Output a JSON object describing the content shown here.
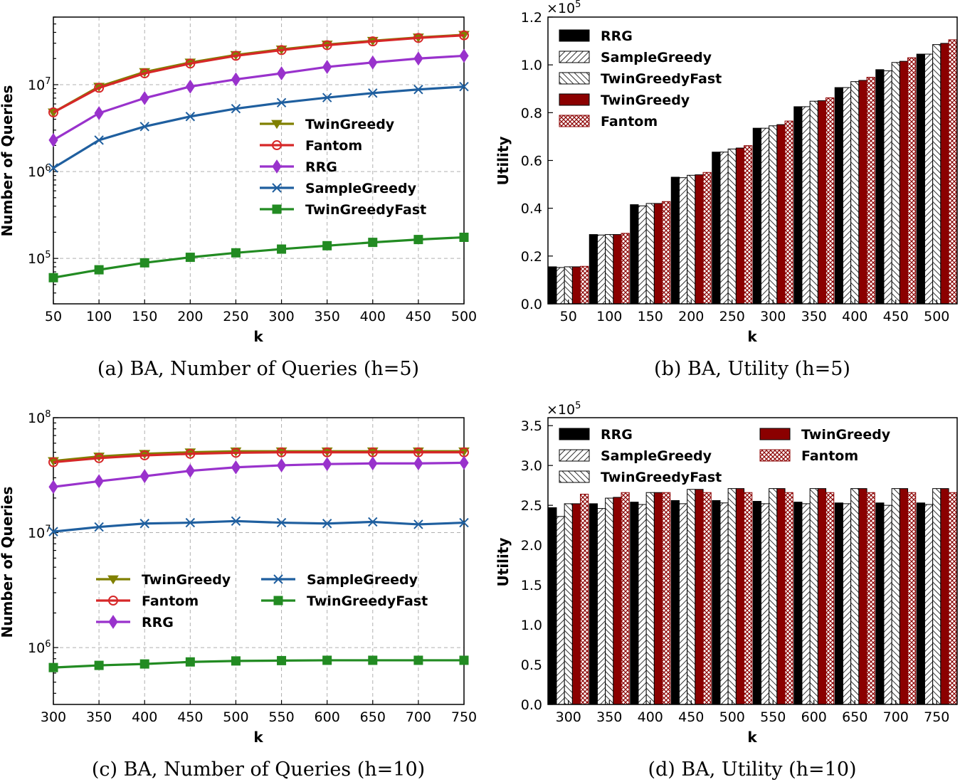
{
  "chart_data": [
    {
      "id": "a",
      "type": "line",
      "caption": "(a) BA, Number of Queries (h=5)",
      "xlabel": "k",
      "ylabel": "Number of Queries",
      "yscale": "log",
      "x": [
        50,
        100,
        150,
        200,
        250,
        300,
        350,
        400,
        450,
        500
      ],
      "xlim": [
        50,
        500
      ],
      "ylim": [
        30000,
        60000000
      ],
      "y_tick_labels": [
        "10",
        "10",
        "10"
      ],
      "y_tick_exponents": [
        "5",
        "6",
        "7"
      ],
      "legend_position": "center-right",
      "legend_columns": 1,
      "series": [
        {
          "name": "TwinGreedy",
          "color": "#808000",
          "marker": "triangle-down",
          "values": [
            4800000,
            9500000,
            14000000,
            18000000,
            22000000,
            25500000,
            29000000,
            32000000,
            35000000,
            37500000
          ]
        },
        {
          "name": "Fantom",
          "color": "#d62728",
          "marker": "circle-open",
          "values": [
            4800000,
            9200000,
            13500000,
            17500000,
            21500000,
            25000000,
            28500000,
            31500000,
            34500000,
            37000000
          ]
        },
        {
          "name": "RRG",
          "color": "#9932CC",
          "marker": "diamond",
          "values": [
            2300000,
            4700000,
            7000000,
            9500000,
            11500000,
            13500000,
            16000000,
            18000000,
            20000000,
            21500000
          ]
        },
        {
          "name": "SampleGreedy",
          "color": "#1f5f9f",
          "marker": "x",
          "values": [
            1100000,
            2300000,
            3300000,
            4300000,
            5300000,
            6200000,
            7100000,
            8000000,
            8800000,
            9500000
          ]
        },
        {
          "name": "TwinGreedyFast",
          "color": "#228B22",
          "marker": "square",
          "values": [
            60000,
            74000,
            89000,
            103000,
            116000,
            128000,
            140000,
            153000,
            165000,
            175000
          ]
        }
      ]
    },
    {
      "id": "b",
      "type": "bar",
      "caption": "(b) BA, Utility (h=5)",
      "xlabel": "k",
      "ylabel": "Utility",
      "multiplier_base": "×10",
      "multiplier_exp": "5",
      "categories": [
        "50",
        "100",
        "150",
        "200",
        "250",
        "300",
        "350",
        "400",
        "450",
        "500"
      ],
      "ylim": [
        0,
        1.2
      ],
      "yticks": [
        0,
        0.2,
        0.4,
        0.6,
        0.8,
        1.0,
        1.2
      ],
      "ytick_labels": [
        "0.0",
        "0.2",
        "0.4",
        "0.6",
        "0.8",
        "1.0",
        "1.2"
      ],
      "legend_position": "top-left",
      "legend_columns": 1,
      "series": [
        {
          "name": "RRG",
          "fill": "#000000",
          "pattern": "solid",
          "values": [
            0.155,
            0.29,
            0.415,
            0.53,
            0.635,
            0.735,
            0.825,
            0.905,
            0.98,
            1.045
          ]
        },
        {
          "name": "SampleGreedy",
          "fill": "#ffffff",
          "pattern": "hatch-fwd",
          "values": [
            0.152,
            0.288,
            0.41,
            0.528,
            0.635,
            0.735,
            0.825,
            0.905,
            0.975,
            1.045
          ]
        },
        {
          "name": "TwinGreedyFast",
          "fill": "#ffffff",
          "pattern": "hatch-back",
          "values": [
            0.155,
            0.29,
            0.42,
            0.538,
            0.648,
            0.745,
            0.848,
            0.93,
            1.01,
            1.085
          ]
        },
        {
          "name": "TwinGreedy",
          "fill": "#8b0000",
          "pattern": "solid",
          "values": [
            0.155,
            0.29,
            0.42,
            0.54,
            0.652,
            0.75,
            0.85,
            0.935,
            1.015,
            1.09
          ]
        },
        {
          "name": "Fantom",
          "fill": "#ffffff",
          "pattern": "crosshatch",
          "values": [
            0.157,
            0.295,
            0.428,
            0.55,
            0.662,
            0.765,
            0.862,
            0.948,
            1.03,
            1.105
          ]
        }
      ]
    },
    {
      "id": "c",
      "type": "line",
      "caption": "(c) BA, Number of Queries (h=10)",
      "xlabel": "k",
      "ylabel": "Number of Queries",
      "yscale": "log",
      "x": [
        300,
        350,
        400,
        450,
        500,
        550,
        600,
        650,
        700,
        750
      ],
      "xlim": [
        300,
        750
      ],
      "ylim": [
        320000,
        100000000
      ],
      "y_tick_labels": [
        "10",
        "10",
        "10"
      ],
      "y_tick_exponents": [
        "6",
        "7",
        "8"
      ],
      "legend_position": "lower-center",
      "legend_columns": 2,
      "series": [
        {
          "name": "TwinGreedy",
          "color": "#808000",
          "marker": "triangle-down",
          "values": [
            42000000,
            46000000,
            48500000,
            50000000,
            51000000,
            51000000,
            51000000,
            51000000,
            51000000,
            51000000
          ]
        },
        {
          "name": "Fantom",
          "color": "#d62728",
          "marker": "circle-open",
          "values": [
            41000000,
            44500000,
            47000000,
            48500000,
            49500000,
            50000000,
            50000000,
            50000000,
            50000000,
            50000000
          ]
        },
        {
          "name": "RRG",
          "color": "#9932CC",
          "marker": "diamond",
          "values": [
            25000000,
            28000000,
            31000000,
            34500000,
            37000000,
            38500000,
            39500000,
            40000000,
            40000000,
            40500000
          ]
        },
        {
          "name": "SampleGreedy",
          "color": "#1f5f9f",
          "marker": "x",
          "values": [
            10200000,
            11200000,
            12000000,
            12200000,
            12600000,
            12200000,
            12000000,
            12400000,
            11800000,
            12200000
          ]
        },
        {
          "name": "TwinGreedyFast",
          "color": "#228B22",
          "marker": "square",
          "values": [
            670000,
            700000,
            720000,
            750000,
            765000,
            770000,
            775000,
            775000,
            775000,
            775000
          ]
        }
      ]
    },
    {
      "id": "d",
      "type": "bar",
      "caption": "(d) BA, Utility (h=10)",
      "xlabel": "k",
      "ylabel": "Utility",
      "multiplier_base": "×10",
      "multiplier_exp": "5",
      "categories": [
        "300",
        "350",
        "400",
        "450",
        "500",
        "550",
        "600",
        "650",
        "700",
        "750"
      ],
      "ylim": [
        0,
        3.6
      ],
      "yticks": [
        0,
        0.5,
        1.0,
        1.5,
        2.0,
        2.5,
        3.0,
        3.5
      ],
      "ytick_labels": [
        "0.0",
        "0.5",
        "1.0",
        "1.5",
        "2.0",
        "2.5",
        "3.0",
        "3.5"
      ],
      "legend_position": "top",
      "legend_columns": 2,
      "series": [
        {
          "name": "RRG",
          "fill": "#000000",
          "pattern": "solid",
          "values": [
            2.47,
            2.52,
            2.54,
            2.56,
            2.56,
            2.55,
            2.54,
            2.53,
            2.53,
            2.53
          ]
        },
        {
          "name": "SampleGreedy",
          "fill": "#ffffff",
          "pattern": "hatch-fwd",
          "values": [
            2.36,
            2.46,
            2.51,
            2.52,
            2.53,
            2.52,
            2.52,
            2.52,
            2.5,
            2.51
          ]
        },
        {
          "name": "TwinGreedyFast",
          "fill": "#ffffff",
          "pattern": "hatch-back",
          "values": [
            2.52,
            2.59,
            2.66,
            2.7,
            2.71,
            2.71,
            2.71,
            2.71,
            2.71,
            2.71
          ]
        },
        {
          "name": "TwinGreedy",
          "fill": "#8b0000",
          "pattern": "solid",
          "values": [
            2.52,
            2.6,
            2.66,
            2.7,
            2.71,
            2.71,
            2.71,
            2.71,
            2.71,
            2.71
          ]
        },
        {
          "name": "Fantom",
          "fill": "#ffffff",
          "pattern": "crosshatch",
          "values": [
            2.64,
            2.66,
            2.66,
            2.66,
            2.66,
            2.66,
            2.66,
            2.66,
            2.66,
            2.66
          ]
        }
      ]
    }
  ]
}
